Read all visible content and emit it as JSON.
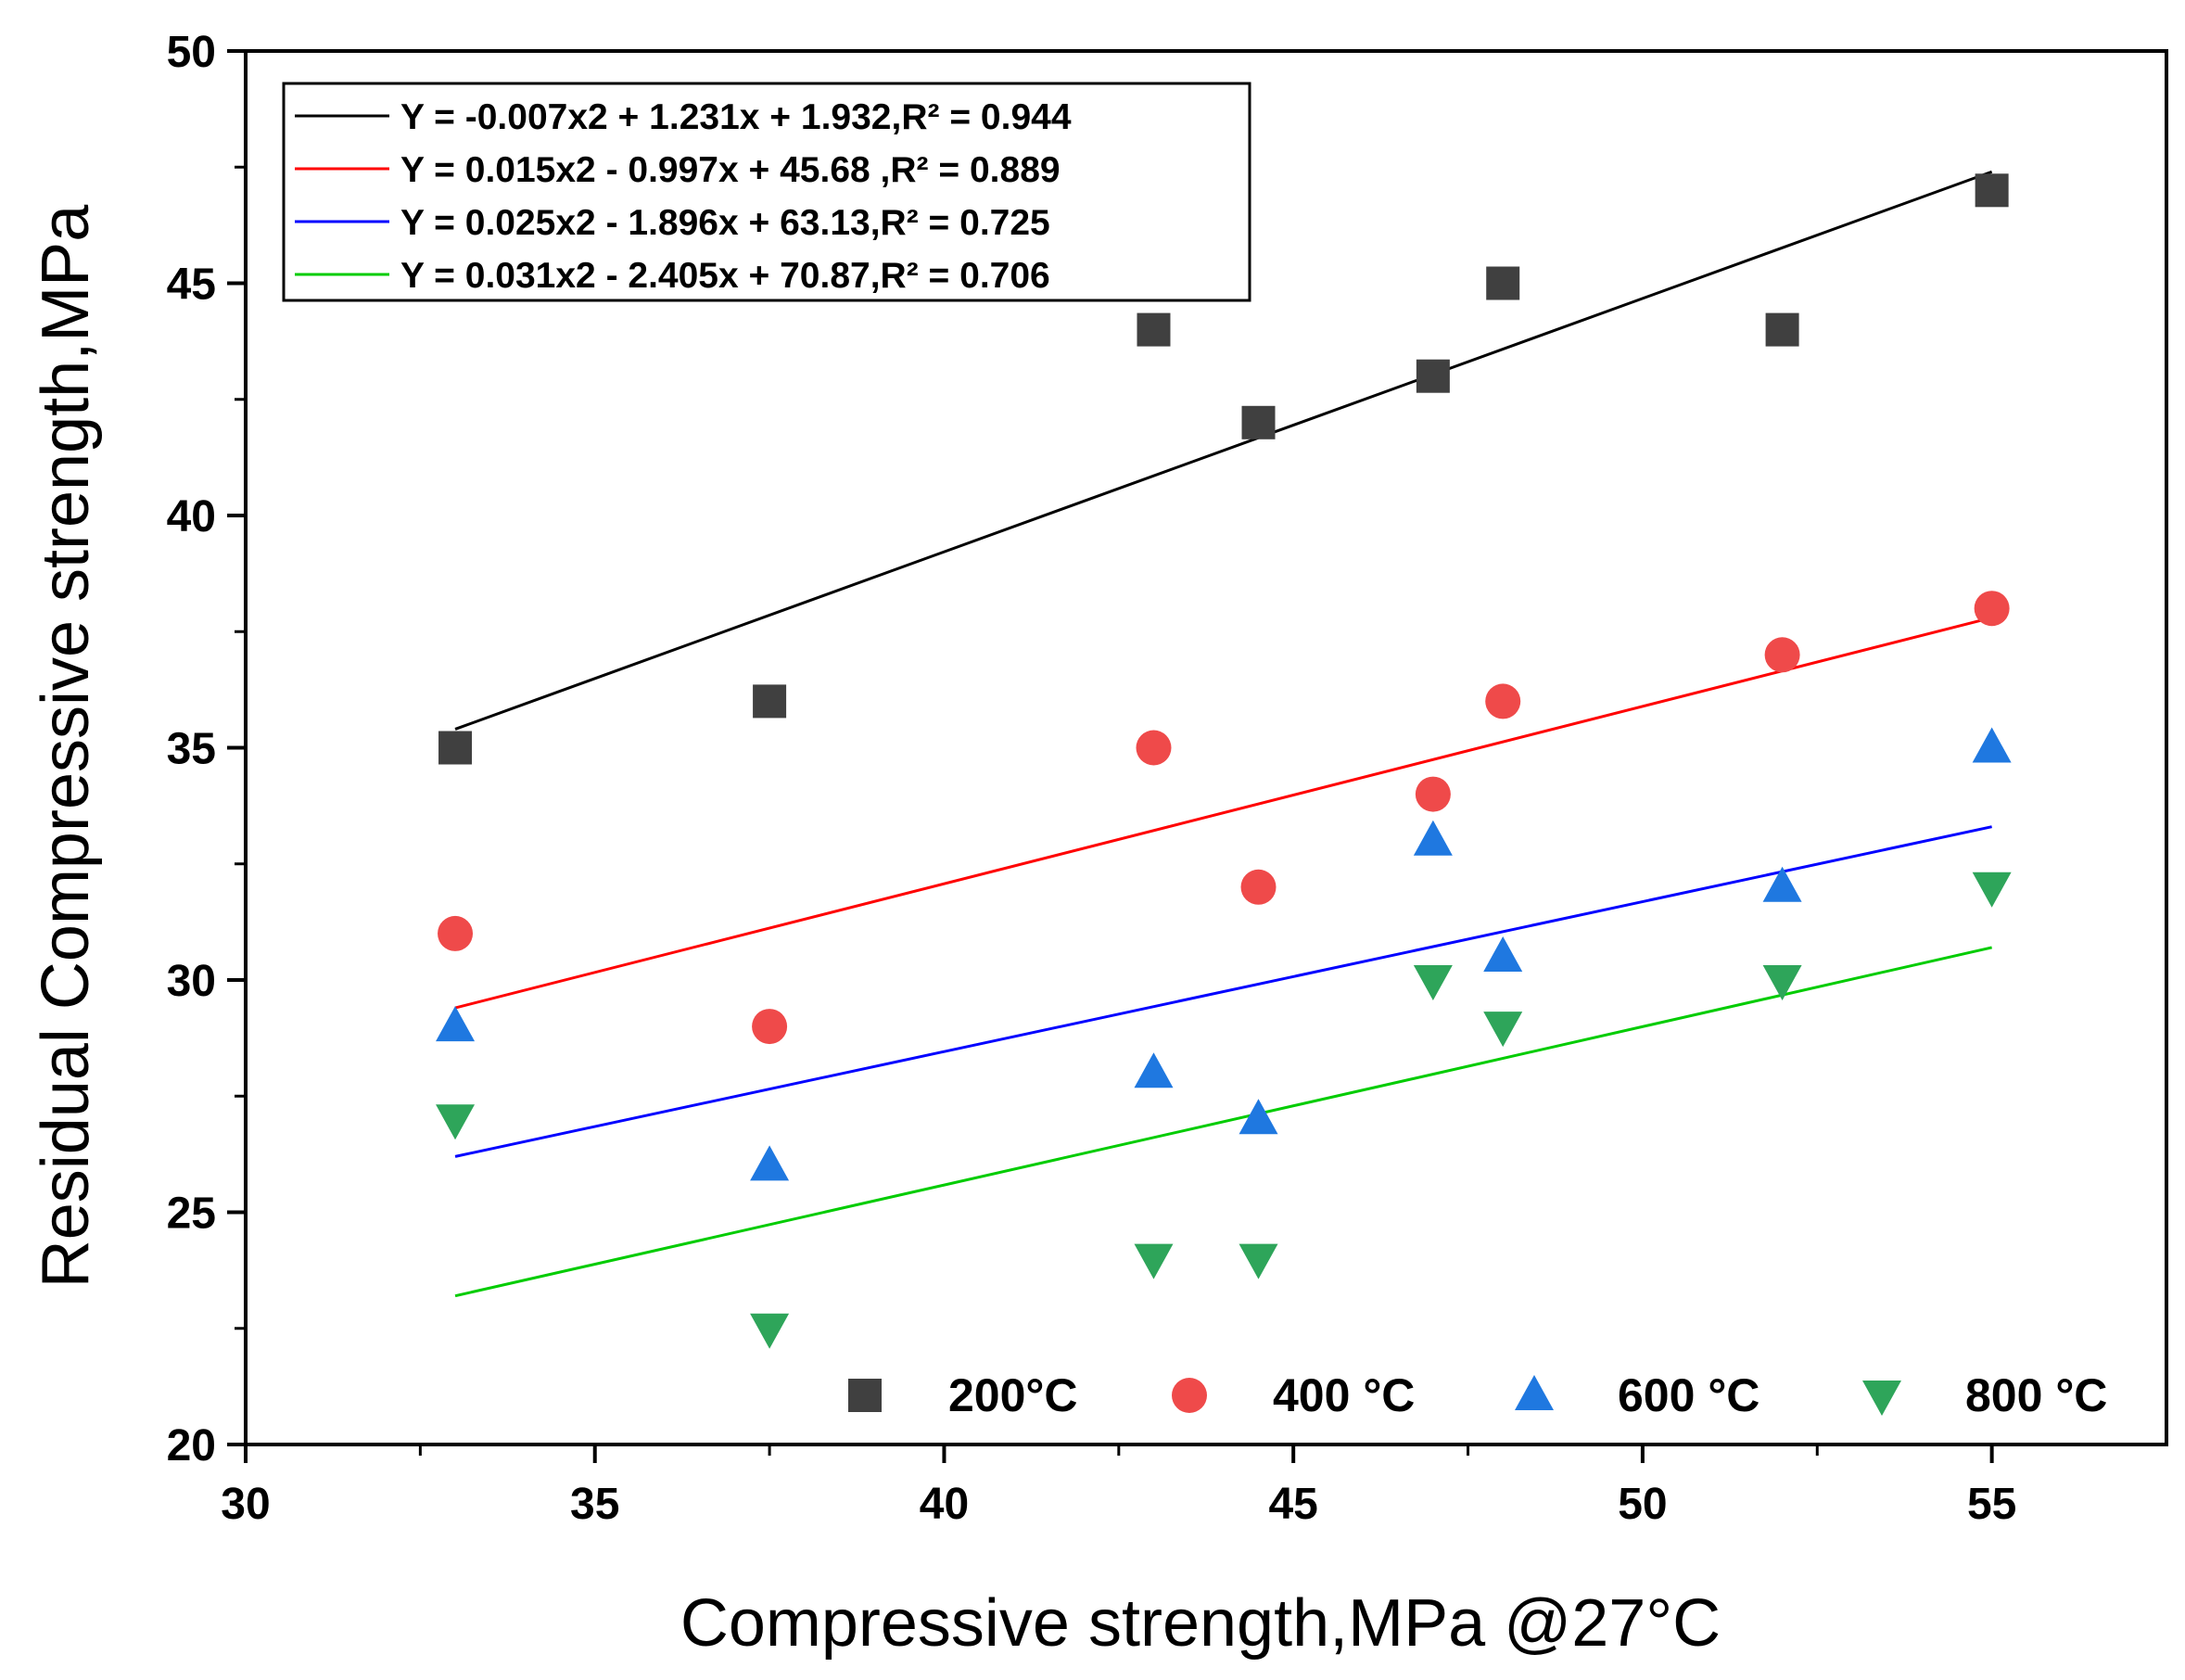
{
  "chart_data": {
    "type": "scatter",
    "title": "",
    "xlabel": "Compressive strength,MPa @27°C",
    "ylabel": "Residual Compressive strength,MPa",
    "xlim": [
      30,
      57.5
    ],
    "ylim": [
      20,
      50
    ],
    "x_ticks": [
      "30",
      "35",
      "40",
      "45",
      "50",
      "55"
    ],
    "y_ticks": [
      "20",
      "25",
      "30",
      "35",
      "40",
      "45",
      "50"
    ],
    "x": [
      33,
      37.5,
      43,
      44.5,
      47,
      48,
      52,
      55
    ],
    "series": [
      {
        "name": "200°C",
        "marker": "square",
        "color": "#404040",
        "values": [
          35,
          36,
          44,
          42,
          43,
          45,
          44,
          47
        ],
        "fit": {
          "equation": "Y = -0.007x2 + 1.231x + 1.932,R² = 0.944",
          "start": [
            33,
            35.4
          ],
          "end": [
            55,
            47.4
          ],
          "color": "#000000"
        }
      },
      {
        "name": "400 °C",
        "marker": "circle",
        "color": "#ef4a4a",
        "values": [
          31,
          29,
          35,
          32,
          34,
          36,
          37,
          38
        ],
        "fit": {
          "equation": "Y = 0.015x2 - 0.997x + 45.68 ,R² = 0.889",
          "start": [
            33,
            29.4
          ],
          "end": [
            55,
            37.8
          ],
          "color": "#ff0000"
        }
      },
      {
        "name": "600 °C",
        "marker": "triangle-up",
        "color": "#1f78e0",
        "values": [
          29,
          26,
          28,
          27,
          33,
          30.5,
          32,
          35
        ],
        "fit": {
          "equation": "Y = 0.025x2 - 1.896x + 63.13,R² = 0.725",
          "start": [
            33,
            26.2
          ],
          "end": [
            55,
            33.3
          ],
          "color": "#0000ff"
        }
      },
      {
        "name": "800 °C",
        "marker": "triangle-down",
        "color": "#2ea55a",
        "values": [
          27,
          22.5,
          24,
          24,
          30,
          29,
          30,
          32
        ],
        "fit": {
          "equation": "Y = 0.031x2 - 2.405x + 70.87,R² = 0.706",
          "start": [
            33,
            23.2
          ],
          "end": [
            55,
            30.7
          ],
          "color": "#00cc00"
        }
      }
    ],
    "legend_position": "top-left",
    "series_legend_position": "bottom-right"
  }
}
